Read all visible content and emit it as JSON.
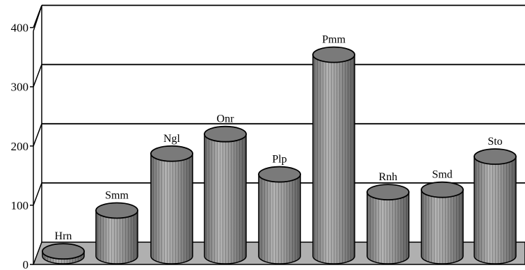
{
  "chart_data": {
    "type": "bar",
    "style": "3d-cylinder",
    "categories": [
      "Hrn",
      "Smm",
      "Ngl",
      "Onr",
      "Plp",
      "Pmm",
      "Rnh",
      "Smd",
      "Sto"
    ],
    "values": [
      8,
      77,
      173,
      206,
      138,
      340,
      108,
      112,
      168
    ],
    "ylim": [
      0,
      400
    ],
    "yticks": [
      "0",
      "100",
      "200",
      "300",
      "400"
    ],
    "grid": true,
    "legend": "none",
    "colors": {
      "bar_body": "#9a9a9a",
      "bar_top": "#7a7a7a",
      "floor": "#b0b0b0",
      "grid": "#000000"
    }
  }
}
